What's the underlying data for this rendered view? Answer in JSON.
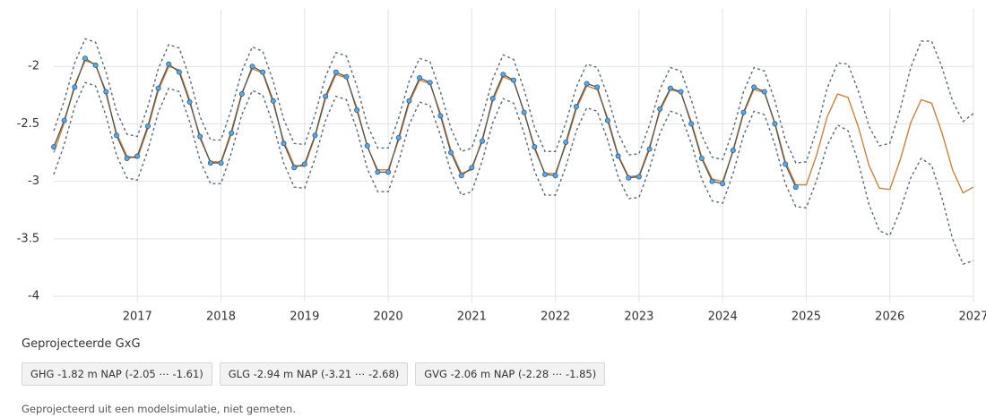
{
  "chart_data": {
    "type": "line",
    "x": [
      2016,
      2016.125,
      2016.25,
      2016.375,
      2016.5,
      2016.625,
      2016.75,
      2016.875,
      2017,
      2017.125,
      2017.25,
      2017.375,
      2017.5,
      2017.625,
      2017.75,
      2017.875,
      2018,
      2018.125,
      2018.25,
      2018.375,
      2018.5,
      2018.625,
      2018.75,
      2018.875,
      2019,
      2019.125,
      2019.25,
      2019.375,
      2019.5,
      2019.625,
      2019.75,
      2019.875,
      2020,
      2020.125,
      2020.25,
      2020.375,
      2020.5,
      2020.625,
      2020.75,
      2020.875,
      2021,
      2021.125,
      2021.25,
      2021.375,
      2021.5,
      2021.625,
      2021.75,
      2021.875,
      2022,
      2022.125,
      2022.25,
      2022.375,
      2022.5,
      2022.625,
      2022.75,
      2022.875,
      2023,
      2023.125,
      2023.25,
      2023.375,
      2023.5,
      2023.625,
      2023.75,
      2023.875,
      2024,
      2024.125,
      2024.25,
      2024.375,
      2024.5,
      2024.625,
      2024.75,
      2024.875,
      2025,
      2025.125,
      2025.25,
      2025.375,
      2025.5,
      2025.625,
      2025.75,
      2025.875,
      2026,
      2026.125,
      2026.25,
      2026.375,
      2026.5,
      2026.625,
      2026.75,
      2026.875,
      2027
    ],
    "series": [
      {
        "color": "#5b6b7b",
        "style": "dashed",
        "values": [
          -2.56,
          -2.3,
          -1.97,
          -1.76,
          -1.79,
          -2.05,
          -2.39,
          -2.59,
          -2.61,
          -2.35,
          -2.02,
          -1.81,
          -1.84,
          -2.1,
          -2.44,
          -2.64,
          -2.64,
          -2.37,
          -2.04,
          -1.83,
          -1.87,
          -2.13,
          -2.46,
          -2.67,
          -2.68,
          -2.42,
          -2.09,
          -1.88,
          -1.91,
          -2.17,
          -2.51,
          -2.71,
          -2.71,
          -2.45,
          -2.13,
          -1.93,
          -1.96,
          -2.22,
          -2.54,
          -2.74,
          -2.71,
          -2.44,
          -2.11,
          -1.9,
          -1.94,
          -2.2,
          -2.53,
          -2.74,
          -2.74,
          -2.49,
          -2.18,
          -1.98,
          -2.01,
          -2.26,
          -2.58,
          -2.77,
          -2.76,
          -2.51,
          -2.2,
          -2.01,
          -2.04,
          -2.29,
          -2.6,
          -2.79,
          -2.81,
          -2.55,
          -2.22,
          -2.01,
          -2.04,
          -2.3,
          -2.64,
          -2.84,
          -2.83,
          -2.55,
          -2.19,
          -1.97,
          -1.98,
          -2.22,
          -2.52,
          -2.69,
          -2.67,
          -2.37,
          -2.01,
          -1.78,
          -1.78,
          -2.01,
          -2.3,
          -2.48,
          -2.41
        ]
      },
      {
        "color": "#5b6b7b",
        "style": "dashed",
        "values": [
          -2.94,
          -2.68,
          -2.35,
          -2.14,
          -2.17,
          -2.43,
          -2.77,
          -2.97,
          -2.99,
          -2.73,
          -2.4,
          -2.19,
          -2.22,
          -2.48,
          -2.82,
          -3.02,
          -3.02,
          -2.75,
          -2.42,
          -2.21,
          -2.25,
          -2.51,
          -2.84,
          -3.05,
          -3.06,
          -2.8,
          -2.47,
          -2.26,
          -2.29,
          -2.55,
          -2.89,
          -3.09,
          -3.09,
          -2.83,
          -2.51,
          -2.31,
          -2.34,
          -2.6,
          -2.92,
          -3.12,
          -3.09,
          -2.82,
          -2.49,
          -2.28,
          -2.32,
          -2.58,
          -2.91,
          -3.12,
          -3.12,
          -2.87,
          -2.56,
          -2.36,
          -2.39,
          -2.64,
          -2.96,
          -3.15,
          -3.14,
          -2.89,
          -2.58,
          -2.39,
          -2.42,
          -2.67,
          -2.98,
          -3.17,
          -3.19,
          -2.93,
          -2.6,
          -2.39,
          -2.42,
          -2.68,
          -3.02,
          -3.22,
          -3.23,
          -2.99,
          -2.69,
          -2.51,
          -2.56,
          -2.84,
          -3.2,
          -3.43,
          -3.47,
          -3.25,
          -2.97,
          -2.8,
          -2.86,
          -3.15,
          -3.5,
          -3.72,
          -3.69
        ]
      },
      {
        "color": "#c8843f",
        "style": "solid",
        "values": [
          -2.75,
          -2.49,
          -2.16,
          -1.95,
          -1.98,
          -2.24,
          -2.58,
          -2.78,
          -2.8,
          -2.54,
          -2.21,
          -2.0,
          -2.03,
          -2.29,
          -2.63,
          -2.83,
          -2.83,
          -2.56,
          -2.23,
          -2.02,
          -2.06,
          -2.32,
          -2.65,
          -2.86,
          -2.87,
          -2.61,
          -2.28,
          -2.07,
          -2.1,
          -2.36,
          -2.7,
          -2.9,
          -2.9,
          -2.64,
          -2.32,
          -2.12,
          -2.15,
          -2.41,
          -2.73,
          -2.93,
          -2.9,
          -2.63,
          -2.3,
          -2.09,
          -2.13,
          -2.39,
          -2.72,
          -2.93,
          -2.93,
          -2.68,
          -2.37,
          -2.17,
          -2.2,
          -2.45,
          -2.77,
          -2.96,
          -2.95,
          -2.7,
          -2.39,
          -2.2,
          -2.23,
          -2.48,
          -2.79,
          -2.98,
          -3.0,
          -2.74,
          -2.41,
          -2.2,
          -2.23,
          -2.49,
          -2.83,
          -3.03,
          -3.03,
          -2.77,
          -2.44,
          -2.24,
          -2.27,
          -2.53,
          -2.86,
          -3.06,
          -3.07,
          -2.81,
          -2.49,
          -2.29,
          -2.32,
          -2.58,
          -2.9,
          -3.1,
          -3.05
        ]
      },
      {
        "color": "#5aa9e6",
        "style": "markers",
        "values": [
          -2.7,
          -2.47,
          -2.18,
          -1.93,
          -1.99,
          -2.22,
          -2.6,
          -2.8,
          -2.78,
          -2.52,
          -2.19,
          -1.98,
          -2.05,
          -2.31,
          -2.61,
          -2.84,
          -2.84,
          -2.58,
          -2.24,
          -2.0,
          -2.05,
          -2.3,
          -2.67,
          -2.88,
          -2.85,
          -2.6,
          -2.26,
          -2.05,
          -2.09,
          -2.38,
          -2.69,
          -2.92,
          -2.92,
          -2.62,
          -2.3,
          -2.1,
          -2.14,
          -2.43,
          -2.75,
          -2.95,
          -2.88,
          -2.65,
          -2.28,
          -2.07,
          -2.12,
          -2.4,
          -2.7,
          -2.94,
          -2.95,
          -2.66,
          -2.35,
          -2.15,
          -2.18,
          -2.47,
          -2.78,
          -2.97,
          -2.96,
          -2.72,
          -2.37,
          -2.19,
          -2.22,
          -2.5,
          -2.8,
          -3.0,
          -3.02,
          -2.73,
          -2.4,
          -2.18,
          -2.22,
          -2.5,
          -2.85,
          -3.05,
          null,
          null,
          null,
          null,
          null,
          null,
          null,
          null,
          null,
          null,
          null,
          null,
          null,
          null,
          null,
          null,
          null
        ]
      }
    ],
    "xlim": [
      2016,
      2027
    ],
    "xticks": [
      2017,
      2018,
      2019,
      2020,
      2021,
      2022,
      2023,
      2024,
      2025,
      2026,
      2027
    ],
    "ylim": [
      -4.05,
      -1.5
    ],
    "yticks": [
      -4,
      -3.5,
      -3,
      -2.5,
      -2
    ],
    "grid": true
  },
  "summary": {
    "title": "Geprojecteerde GxG",
    "items": [
      "GHG -1.82 m NAP (-2.05 ⋯ -1.61)",
      "GLG -2.94 m NAP (-3.21 ⋯ -2.68)",
      "GVG -2.06 m NAP (-2.28 ⋯ -1.85)"
    ]
  },
  "footnote": "Geprojecteerd uit een modelsimulatie, niet gemeten."
}
